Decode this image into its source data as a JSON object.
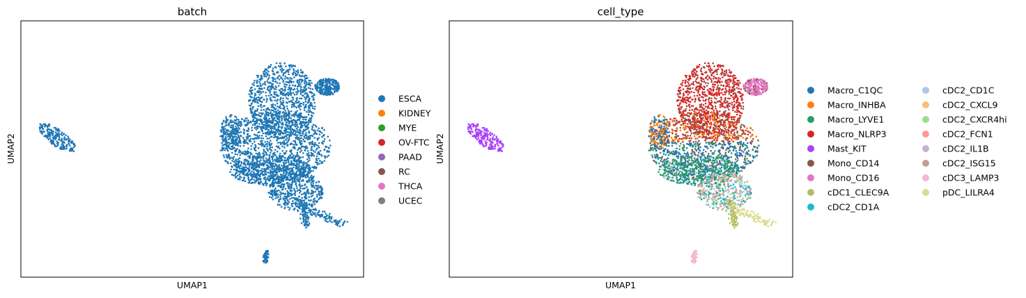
{
  "chart_data": [
    {
      "type": "scatter",
      "title": "batch",
      "xlabel": "UMAP1",
      "ylabel": "UMAP2",
      "xlim": [
        -6.5,
        15.5
      ],
      "ylim": [
        -3.5,
        12.5
      ],
      "grid": false,
      "ticks": "hidden",
      "legend_position": "right",
      "legend": [
        {
          "label": "ESCA",
          "color": "#1f77b4"
        },
        {
          "label": "KIDNEY",
          "color": "#ff7f0e"
        },
        {
          "label": "MYE",
          "color": "#2ca02c"
        },
        {
          "label": "OV-FTC",
          "color": "#d62728"
        },
        {
          "label": "PAAD",
          "color": "#9467bd"
        },
        {
          "label": "RC",
          "color": "#8c564b"
        },
        {
          "label": "THCA",
          "color": "#e377c2"
        },
        {
          "label": "UCEC",
          "color": "#7f7f7f"
        }
      ],
      "series": [
        {
          "name": "ESCA",
          "color": "#1f77b4",
          "region": "all cells"
        }
      ]
    },
    {
      "type": "scatter",
      "title": "cell_type",
      "xlabel": "UMAP1",
      "ylabel": "UMAP2",
      "xlim": [
        -6.5,
        15.5
      ],
      "ylim": [
        -3.5,
        12.5
      ],
      "grid": false,
      "ticks": "hidden",
      "legend_position": "right, two columns",
      "legend": [
        {
          "label": "Macro_C1QC",
          "color": "#1f77b4"
        },
        {
          "label": "Macro_INHBA",
          "color": "#ff7f0e"
        },
        {
          "label": "Macro_LYVE1",
          "color": "#279e68"
        },
        {
          "label": "Macro_NLRP3",
          "color": "#d62728"
        },
        {
          "label": "Mast_KIT",
          "color": "#aa40fc"
        },
        {
          "label": "Mono_CD14",
          "color": "#8c564b"
        },
        {
          "label": "Mono_CD16",
          "color": "#e377c2"
        },
        {
          "label": "cDC1_CLEC9A",
          "color": "#b5bd61"
        },
        {
          "label": "cDC2_CD1A",
          "color": "#17becf"
        },
        {
          "label": "cDC2_CD1C",
          "color": "#aec7e8"
        },
        {
          "label": "cDC2_CXCL9",
          "color": "#ffbb78"
        },
        {
          "label": "cDC2_CXCR4hi",
          "color": "#98df8a"
        },
        {
          "label": "cDC2_FCN1",
          "color": "#ff9896"
        },
        {
          "label": "cDC2_IL1B",
          "color": "#c5b0d5"
        },
        {
          "label": "cDC2_ISG15",
          "color": "#c49c94"
        },
        {
          "label": "cDC3_LAMP3",
          "color": "#f7b6d2"
        },
        {
          "label": "pDC_LILRA4",
          "color": "#dbdb8d"
        }
      ]
    }
  ]
}
